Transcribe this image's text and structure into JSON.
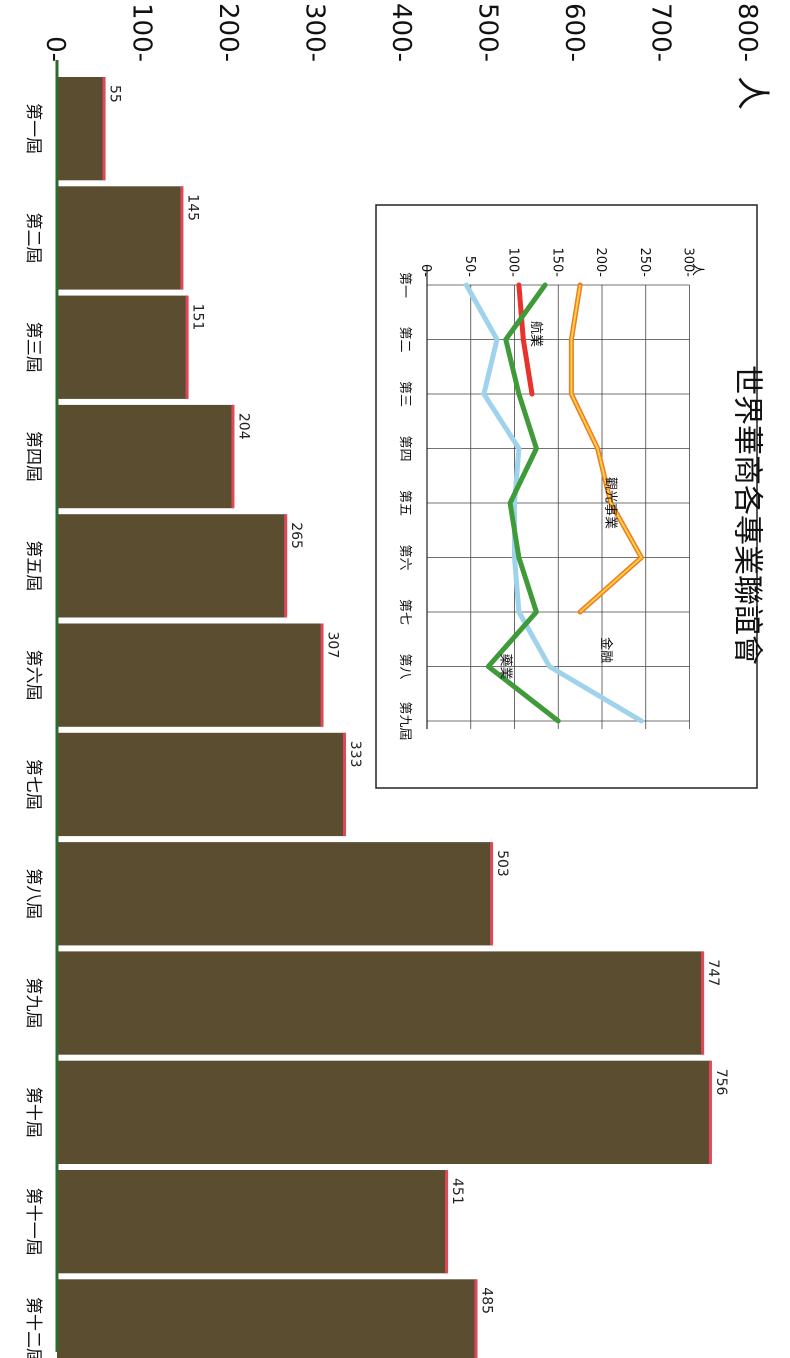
{
  "chart_data": [
    {
      "type": "bar",
      "ylabel": "人",
      "ylim": [
        0,
        800
      ],
      "y_ticks": [
        "0",
        "100",
        "200",
        "300",
        "400",
        "500",
        "600",
        "700",
        "800"
      ],
      "categories": [
        "第一屆",
        "第二屆",
        "第三屆",
        "第四屆",
        "第五屆",
        "第六屆",
        "第七屆",
        "第八屆",
        "第九屆",
        "第十屆",
        "第十一屆",
        "第十二屆"
      ],
      "values": [
        55,
        145,
        151,
        204,
        265,
        307,
        333,
        503,
        747,
        756,
        451,
        485
      ],
      "value_labels": [
        "55",
        "145",
        "151",
        "204",
        "265",
        "307",
        "333",
        "503",
        "747",
        "756",
        "451",
        "485"
      ],
      "colors": {
        "bar": "#5b4d2f",
        "bar_edge": "#e0485a",
        "axis": "#2e6b2e"
      }
    },
    {
      "type": "line",
      "title": "世界華商各專業聯誼會",
      "ylabel": "人",
      "ylim": [
        0,
        300
      ],
      "y_ticks": [
        "0",
        "50",
        "100",
        "150",
        "200",
        "250",
        "300"
      ],
      "categories": [
        "第一",
        "第二",
        "第三",
        "第四",
        "第五",
        "第六",
        "第七",
        "第八",
        "第九屆"
      ],
      "grid": true,
      "series": [
        {
          "name": "觀光事業",
          "color": "#f07a2a",
          "values": [
            175,
            165,
            165,
            195,
            210,
            245,
            175,
            null,
            null
          ]
        },
        {
          "name": "航業",
          "color": "#e8332d",
          "values": [
            105,
            110,
            120,
            null,
            null,
            null,
            null,
            null,
            null
          ]
        },
        {
          "name": "金融",
          "color": "#9fd3ec",
          "values": [
            45,
            80,
            65,
            105,
            100,
            100,
            105,
            140,
            245
          ]
        },
        {
          "name": "藥業",
          "color": "#3f9a3a",
          "values": [
            135,
            90,
            105,
            125,
            95,
            105,
            125,
            70,
            150
          ]
        }
      ]
    }
  ]
}
